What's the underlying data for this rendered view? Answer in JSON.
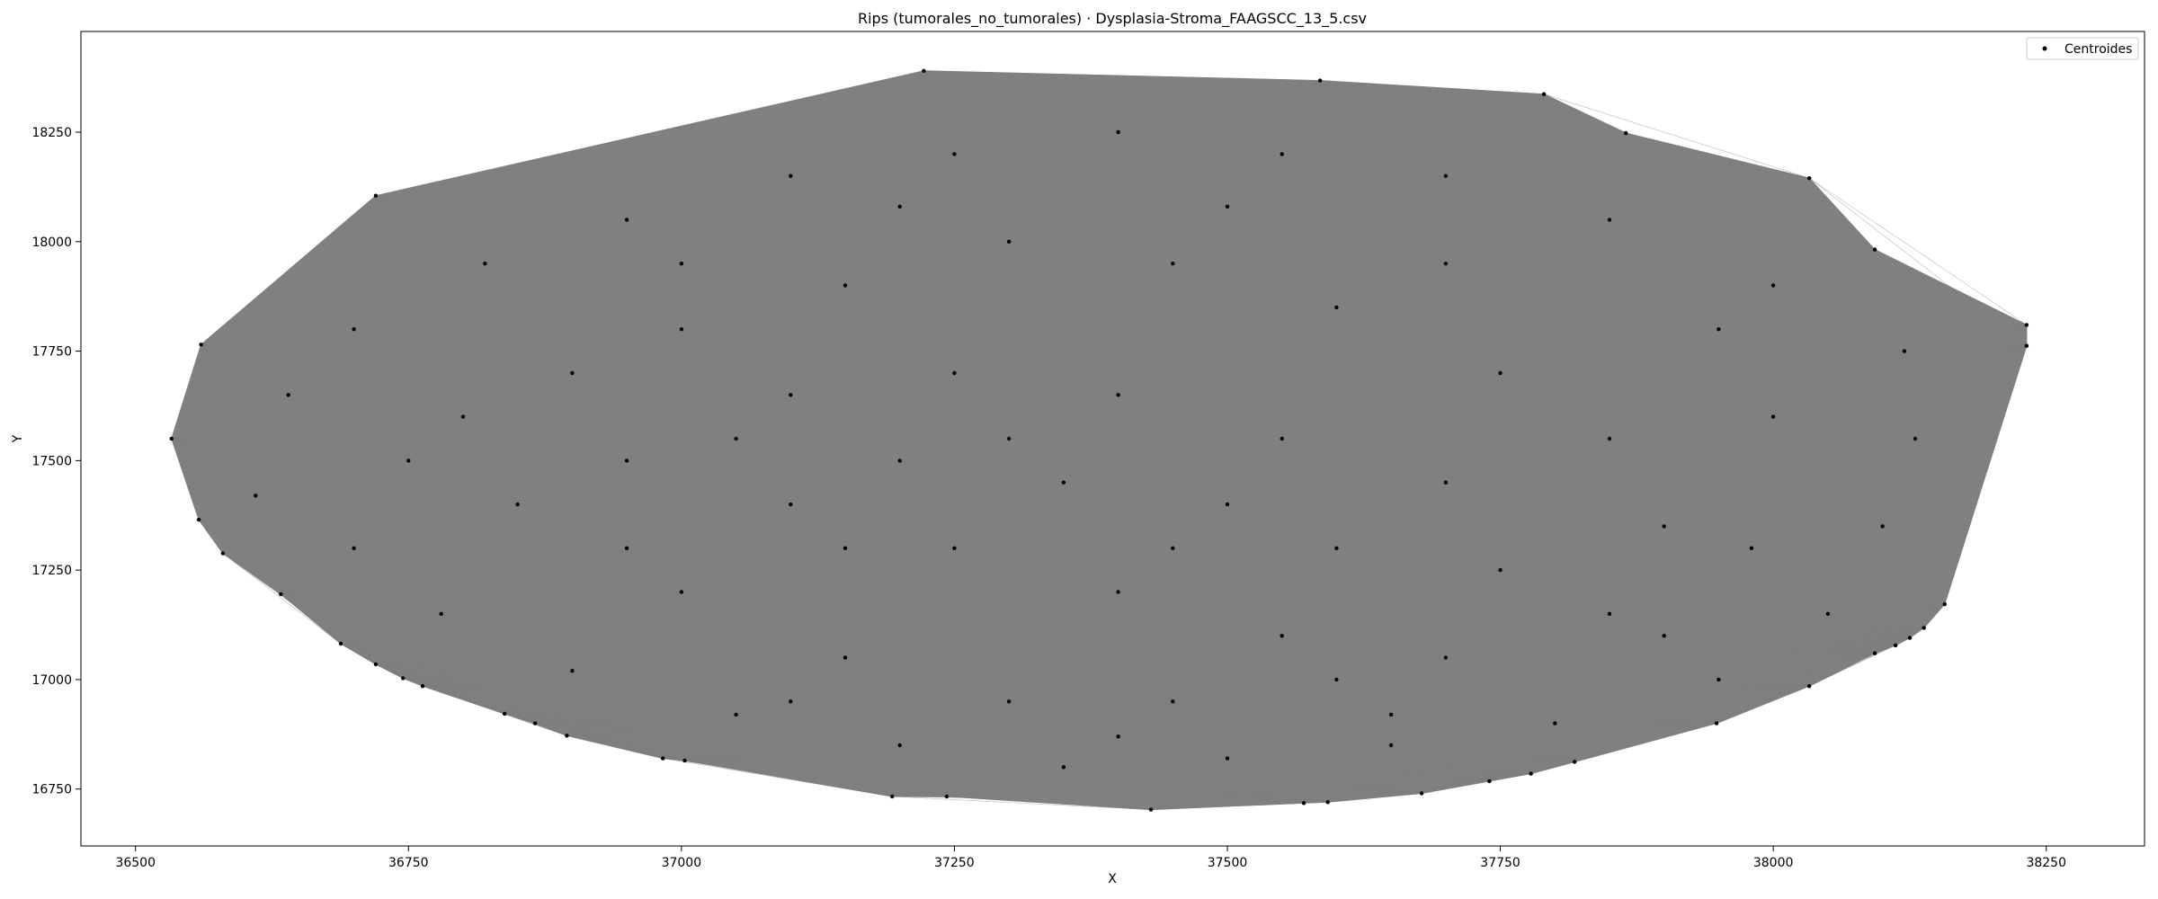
{
  "chart_data": {
    "type": "scatter",
    "title": "Rips (tumorales_no_tumorales) · Dysplasia-Stroma_FAAGSCC_13_5.csv",
    "xlabel": "X",
    "ylabel": "Y",
    "xlim": [
      36450,
      38340
    ],
    "ylim": [
      16620,
      18480
    ],
    "xticks": [
      36500,
      36750,
      37000,
      37250,
      37500,
      37750,
      38000,
      38250
    ],
    "yticks": [
      16750,
      17000,
      17250,
      17500,
      17750,
      18000,
      18250
    ],
    "grid": false,
    "legend_position": "top-right",
    "colors": {
      "points": "#000000",
      "edges": "#808080",
      "fill": "#808080"
    },
    "series": [
      {
        "name": "Centroides",
        "hull_points": [
          [
            36533,
            17550
          ],
          [
            36558,
            17365
          ],
          [
            36580,
            17288
          ],
          [
            36633,
            17195
          ],
          [
            36688,
            17082
          ],
          [
            36720,
            17035
          ],
          [
            36745,
            17003
          ],
          [
            36763,
            16985
          ],
          [
            36838,
            16922
          ],
          [
            36866,
            16900
          ],
          [
            36895,
            16872
          ],
          [
            36983,
            16820
          ],
          [
            37003,
            16815
          ],
          [
            37193,
            16733
          ],
          [
            37243,
            16733
          ],
          [
            37430,
            16703
          ],
          [
            37570,
            16718
          ],
          [
            37592,
            16720
          ],
          [
            37678,
            16740
          ],
          [
            37740,
            16768
          ],
          [
            37778,
            16785
          ],
          [
            37818,
            16812
          ],
          [
            37948,
            16900
          ],
          [
            38033,
            16985
          ],
          [
            38093,
            17060
          ],
          [
            38112,
            17078
          ],
          [
            38125,
            17095
          ],
          [
            38138,
            17118
          ],
          [
            38157,
            17172
          ],
          [
            38232,
            17762
          ],
          [
            38232,
            17810
          ],
          [
            38093,
            17982
          ],
          [
            38033,
            18145
          ],
          [
            37865,
            18248
          ],
          [
            37790,
            18337
          ],
          [
            37585,
            18368
          ],
          [
            37222,
            18390
          ],
          [
            36720,
            18105
          ],
          [
            36560,
            17765
          ]
        ],
        "interior_points": [
          [
            36610,
            17420
          ],
          [
            36700,
            17300
          ],
          [
            36780,
            17150
          ],
          [
            36900,
            17020
          ],
          [
            37050,
            16920
          ],
          [
            37200,
            16850
          ],
          [
            37350,
            16800
          ],
          [
            37500,
            16820
          ],
          [
            37650,
            16850
          ],
          [
            37800,
            16900
          ],
          [
            37950,
            17000
          ],
          [
            38050,
            17150
          ],
          [
            38100,
            17350
          ],
          [
            38130,
            17550
          ],
          [
            38120,
            17750
          ],
          [
            38000,
            17900
          ],
          [
            37850,
            18050
          ],
          [
            37700,
            18150
          ],
          [
            37550,
            18200
          ],
          [
            37400,
            18250
          ],
          [
            37250,
            18200
          ],
          [
            37100,
            18150
          ],
          [
            36950,
            18050
          ],
          [
            36820,
            17950
          ],
          [
            36700,
            17800
          ],
          [
            36640,
            17650
          ],
          [
            36800,
            17600
          ],
          [
            36950,
            17500
          ],
          [
            37100,
            17400
          ],
          [
            37250,
            17300
          ],
          [
            37400,
            17200
          ],
          [
            37550,
            17100
          ],
          [
            37700,
            17050
          ],
          [
            37850,
            17150
          ],
          [
            37900,
            17350
          ],
          [
            37850,
            17550
          ],
          [
            37750,
            17700
          ],
          [
            37600,
            17850
          ],
          [
            37450,
            17950
          ],
          [
            37300,
            18000
          ],
          [
            37150,
            17900
          ],
          [
            37000,
            17800
          ],
          [
            36900,
            17700
          ],
          [
            36850,
            17400
          ],
          [
            37000,
            17200
          ],
          [
            37150,
            17050
          ],
          [
            37300,
            16950
          ],
          [
            37450,
            16950
          ],
          [
            37600,
            17000
          ],
          [
            37750,
            17250
          ],
          [
            37700,
            17450
          ],
          [
            37550,
            17550
          ],
          [
            37400,
            17650
          ],
          [
            37250,
            17700
          ],
          [
            37100,
            17650
          ],
          [
            37050,
            17550
          ],
          [
            37200,
            17500
          ],
          [
            37350,
            17450
          ],
          [
            37500,
            17400
          ],
          [
            37600,
            17300
          ],
          [
            37450,
            17300
          ],
          [
            37300,
            17550
          ],
          [
            37150,
            17300
          ],
          [
            36950,
            17300
          ],
          [
            36750,
            17500
          ],
          [
            37000,
            17950
          ],
          [
            37200,
            18080
          ],
          [
            37500,
            18080
          ],
          [
            37700,
            17950
          ],
          [
            37950,
            17800
          ],
          [
            38000,
            17600
          ],
          [
            37980,
            17300
          ],
          [
            37900,
            17100
          ],
          [
            37650,
            16920
          ],
          [
            37400,
            16870
          ],
          [
            37100,
            16950
          ]
        ]
      }
    ]
  }
}
